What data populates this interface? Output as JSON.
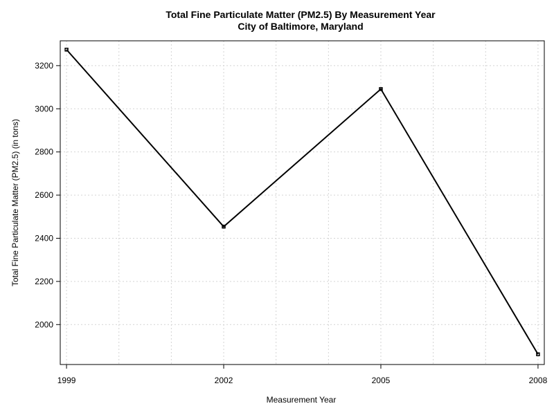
{
  "chart_data": {
    "type": "line",
    "title": "Total Fine Particulate Matter (PM2.5) By Measurement Year",
    "subtitle": "City of Baltimore, Maryland",
    "xlabel": "Measurement Year",
    "ylabel": "Total Fine Particulate Matter (PM2.5) (in tons)",
    "x": [
      1999,
      2002,
      2005,
      2008
    ],
    "x_tick_labels": [
      "1999",
      "2002",
      "2005",
      "2008"
    ],
    "y_ticks": [
      2000,
      2200,
      2400,
      2600,
      2800,
      3000,
      3200
    ],
    "y_tick_labels": [
      "2000",
      "2200",
      "2400",
      "2600",
      "2800",
      "3000",
      "3200"
    ],
    "xlim": [
      1998.88,
      2008.12
    ],
    "ylim": [
      1815,
      3315
    ],
    "grid": true,
    "x_grid_values": [
      1999,
      2000,
      2001,
      2002,
      2003,
      2004,
      2005,
      2006,
      2007,
      2008
    ],
    "series": [
      {
        "values": [
          3274.18,
          2453.92,
          3091.35,
          1862.28
        ],
        "color": "#000000"
      }
    ],
    "colors": {
      "line": "#000000",
      "grid": "#d3d3d3",
      "axis": "#000000",
      "background": "#ffffff"
    }
  }
}
